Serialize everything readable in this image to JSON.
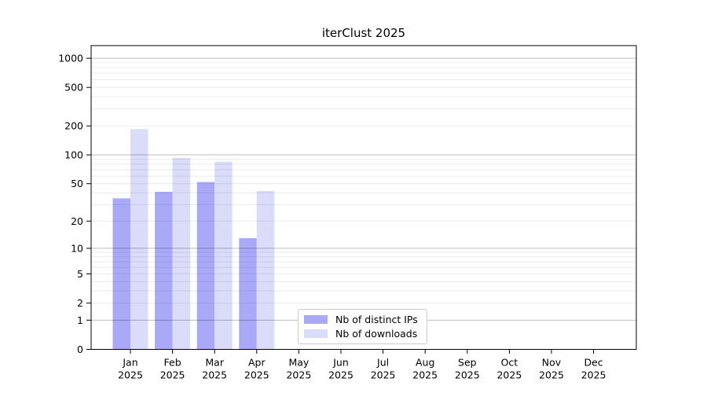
{
  "chart_data": {
    "type": "bar",
    "title": "iterClust 2025",
    "yscale": "log1p",
    "ylim": [
      0,
      1350
    ],
    "grid": "both (major gridlines at 1,10,100,1000; faint minor log gridlines)",
    "legend_position": "bottom-center",
    "y_ticks": [
      1000,
      500,
      200,
      100,
      50,
      20,
      10,
      5,
      2,
      1,
      0
    ],
    "categories": [
      "Jan",
      "Feb",
      "Mar",
      "Apr",
      "May",
      "Jun",
      "Jul",
      "Aug",
      "Sep",
      "Oct",
      "Nov",
      "Dec"
    ],
    "x_tick_year": "2025",
    "series": [
      {
        "name": "Nb of distinct IPs",
        "color": "#a9a9f8",
        "values": [
          35,
          41,
          52,
          13,
          0,
          0,
          0,
          0,
          0,
          0,
          0,
          0
        ]
      },
      {
        "name": "Nb of downloads",
        "color": "#dbdbfa",
        "values": [
          185,
          93,
          85,
          42,
          0,
          0,
          0,
          0,
          0,
          0,
          0,
          0
        ]
      }
    ],
    "colors": {
      "spine": "#000000",
      "tick_text": "#000000",
      "grid_major": "rgba(0,0,0,0.26)",
      "grid_minor": "rgba(0,0,0,0.08)",
      "background": "#ffffff"
    }
  }
}
